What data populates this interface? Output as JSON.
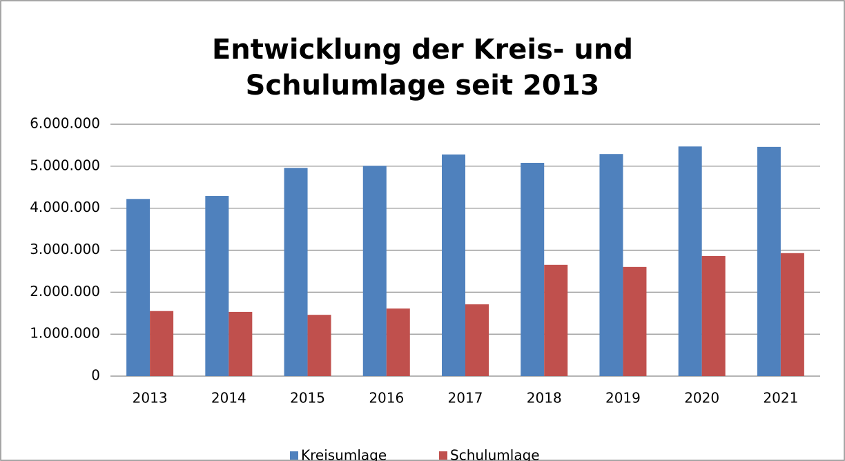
{
  "chart_data": {
    "type": "bar",
    "title": "Entwicklung der Kreis- und Schulumlage seit 2013",
    "categories": [
      "2013",
      "2014",
      "2015",
      "2016",
      "2017",
      "2018",
      "2019",
      "2020",
      "2021"
    ],
    "series": [
      {
        "name": "Kreisumlage",
        "color": "#4f81bd",
        "values": [
          4220000,
          4290000,
          4960000,
          5010000,
          5280000,
          5080000,
          5290000,
          5470000,
          5460000
        ]
      },
      {
        "name": "Schulumlage",
        "color": "#c0504d",
        "values": [
          1550000,
          1530000,
          1460000,
          1610000,
          1710000,
          2650000,
          2600000,
          2860000,
          2930000
        ]
      }
    ],
    "ylim": [
      0,
      6000000
    ],
    "yticks": [
      0,
      {
        "value": 1000000,
        "label": "1.000.000"
      },
      {
        "value": 2000000,
        "label": "2.000.000"
      },
      {
        "value": 3000000,
        "label": "3.000.000"
      },
      {
        "value": 4000000,
        "label": "4.000.000"
      },
      {
        "value": 5000000,
        "label": "5.000.000"
      },
      {
        "value": 6000000,
        "label": "6.000.000"
      }
    ],
    "grid": true,
    "legend": "bottom"
  }
}
